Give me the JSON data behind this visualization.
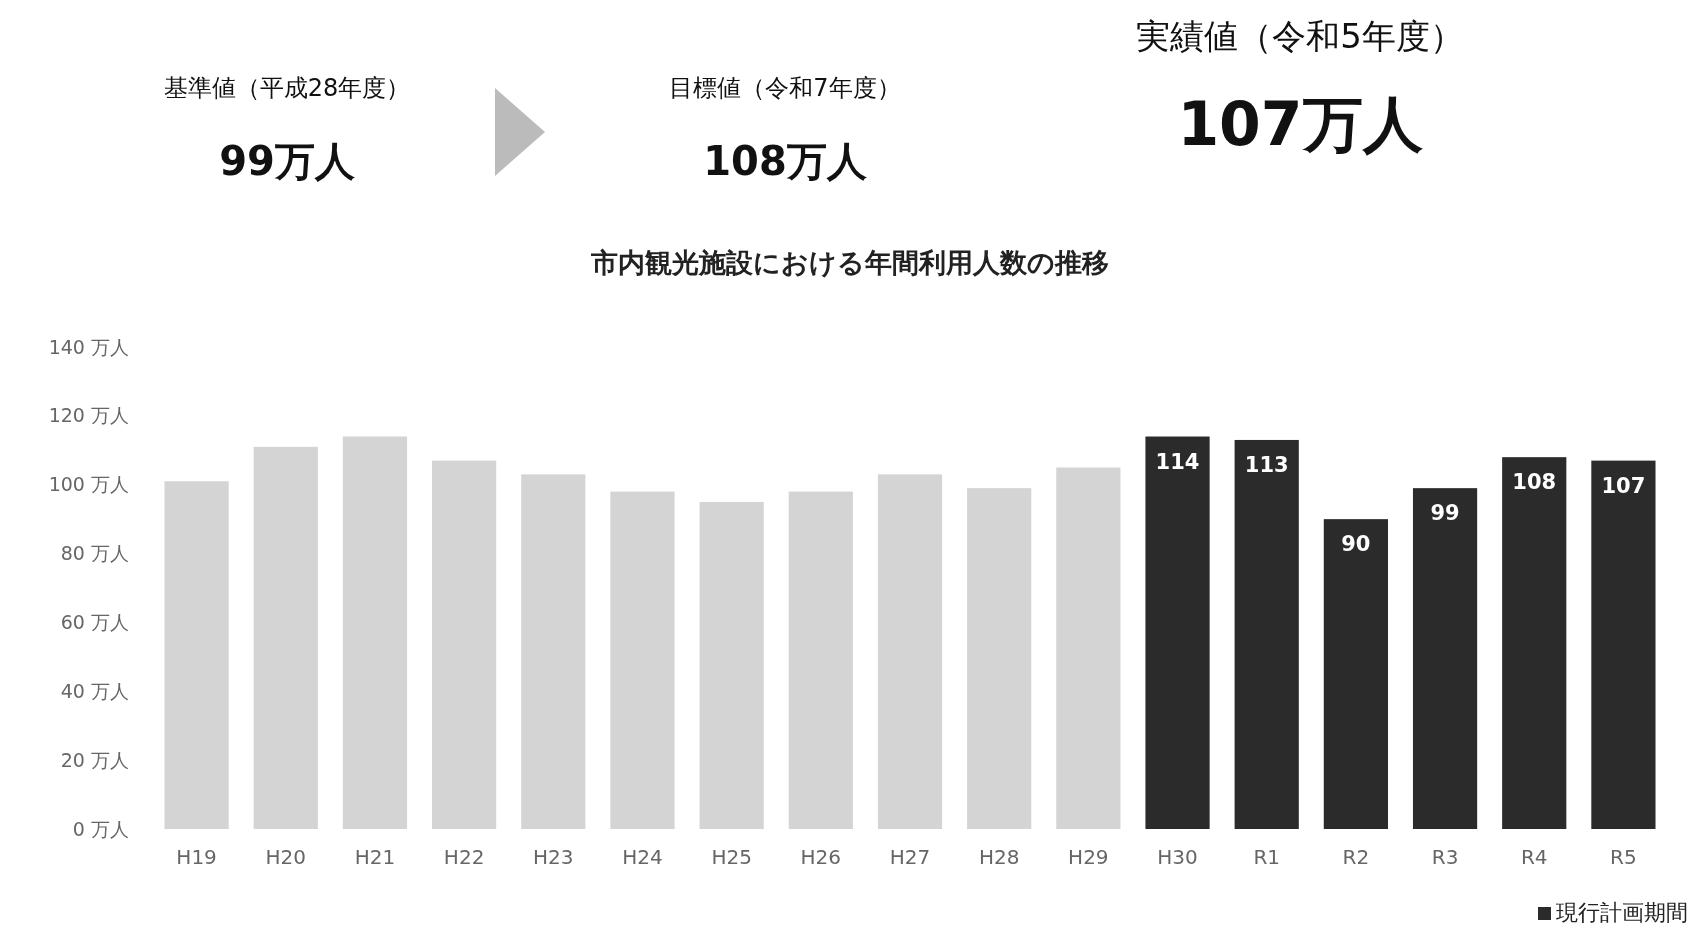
{
  "chart_data": {
    "type": "bar",
    "title": "市内観光施設における年間利用人数の推移",
    "annotations": [
      "基準値（平成28年度）",
      "99万人",
      "目標値（令和7年度）",
      "108万人",
      "実績値（令和5年度）",
      "107万人"
    ],
    "categories": [
      "H19",
      "H20",
      "H21",
      "H22",
      "H23",
      "H24",
      "H25",
      "H26",
      "H27",
      "H28",
      "H29",
      "H30",
      "R1",
      "R2",
      "R3",
      "R4",
      "R5"
    ],
    "series": [
      {
        "color": "#d4d4d4",
        "values": [
          101,
          111,
          114,
          107,
          103,
          98,
          95,
          98,
          103,
          99,
          105,
          null,
          null,
          null,
          null,
          null,
          null
        ]
      },
      {
        "name": "現行計画期間",
        "color": "#2b2b2b",
        "values": [
          null,
          null,
          null,
          null,
          null,
          null,
          null,
          null,
          null,
          null,
          null,
          114,
          113,
          90,
          99,
          108,
          107
        ],
        "value_labels": [
          null,
          null,
          null,
          null,
          null,
          null,
          null,
          null,
          null,
          null,
          null,
          "114",
          "113",
          "90",
          "99",
          "108",
          "107"
        ]
      }
    ],
    "ylim": [
      0,
      140
    ],
    "yticks": [
      {
        "value": 0,
        "label": "0 万人"
      },
      {
        "value": 20,
        "label": "20 万人"
      },
      {
        "value": 40,
        "label": "40 万人"
      },
      {
        "value": 60,
        "label": "60 万人"
      },
      {
        "value": 80,
        "label": "80 万人"
      },
      {
        "value": 100,
        "label": "100 万人"
      },
      {
        "value": 120,
        "label": "120 万人"
      },
      {
        "value": 140,
        "label": "140 万人"
      }
    ],
    "legend": "bottom right"
  }
}
